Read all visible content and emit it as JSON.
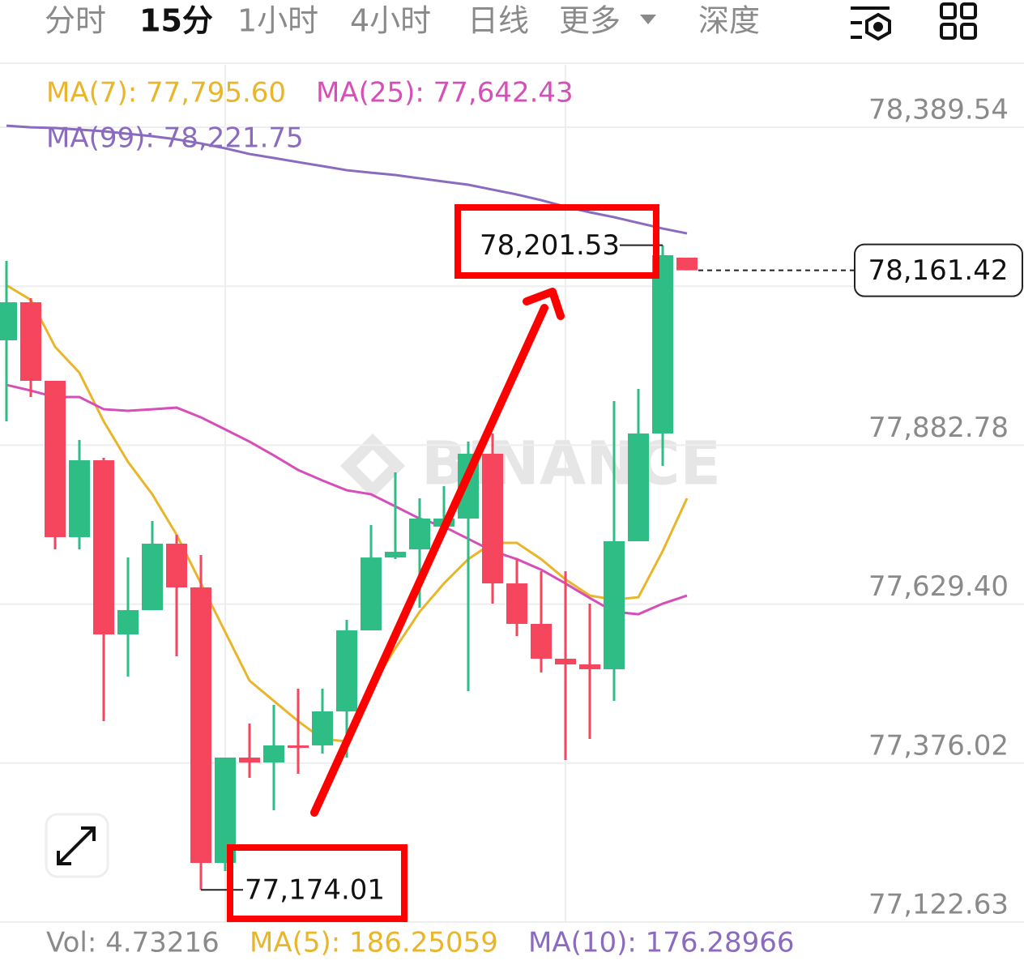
{
  "tabs": [
    "分时",
    "15分",
    "1小时",
    "4小时",
    "日线",
    "更多",
    "深度"
  ],
  "chart_data": {
    "type": "candlestick",
    "watermark": "BINANCE",
    "up_color": "#2ebd85",
    "down_color": "#f6465d",
    "ylim": [
      77122.63,
      78490
    ],
    "yticks": [
      {
        "value": 78389.54,
        "label": "78,389.54"
      },
      {
        "value": 78136.16,
        "label": null
      },
      {
        "value": 77882.78,
        "label": "77,882.78"
      },
      {
        "value": 77629.4,
        "label": "77,629.40"
      },
      {
        "value": 77376.02,
        "label": "77,376.02"
      },
      {
        "value": 77122.63,
        "label": "77,122.63"
      }
    ],
    "grid": true,
    "open": [
      78049.9,
      78110.5,
      77985.3,
      77736.1,
      77858.7,
      77581.1,
      77619.8,
      77725.7,
      77656.0,
      77216.9,
      77384.8,
      77377.0,
      77404.2,
      77404.2,
      77458.4,
      77587.5,
      77703.7,
      77716.7,
      77752.9,
      77765.8,
      77869.1,
      77662.4,
      77597.9,
      77542.4,
      77533.3,
      77525.6,
      77729.6,
      77901.3,
      78181.6
    ],
    "high": [
      78176.4,
      78117.0,
      77985.3,
      77891.0,
      77862.6,
      77703.7,
      77761.9,
      77740.0,
      77707.6,
      77384.8,
      77439.0,
      77468.7,
      77494.6,
      77494.6,
      77604.3,
      77755.4,
      77839.4,
      77798.0,
      77817.4,
      77888.4,
      77901.3,
      77701.2,
      77681.8,
      77681.8,
      77630.2,
      77953.0,
      77972.4,
      78201.53,
      78181.6
    ],
    "low": [
      77920.7,
      77959.5,
      77716.7,
      77716.7,
      77442.9,
      77514.0,
      77619.8,
      77546.2,
      77174.01,
      77204.0,
      77352.5,
      77300.8,
      77358.9,
      77391.2,
      77384.8,
      77587.5,
      77701.2,
      77623.7,
      77740.0,
      77490.7,
      77630.2,
      77578.5,
      77520.4,
      77380.9,
      77414.5,
      77475.2,
      77729.6,
      77849.7,
      78161.42
    ],
    "close": [
      78110.5,
      77985.3,
      77736.1,
      77858.7,
      77581.1,
      77619.8,
      77725.7,
      77656.0,
      77216.9,
      77384.8,
      77377.0,
      77404.2,
      77401.6,
      77458.4,
      77587.5,
      77703.7,
      77712.8,
      77765.8,
      77765.8,
      77869.1,
      77662.4,
      77597.9,
      77542.4,
      77533.3,
      77525.6,
      77729.6,
      77901.3,
      78185.5,
      78161.42
    ],
    "series": [
      {
        "name": "MA(7): 77,795.60",
        "color": "#e9b52b",
        "values": [
          78137.6,
          78114.4,
          78039.5,
          77998.2,
          77920.7,
          77856.1,
          77804.4,
          77739.9,
          77662.4,
          77584.9,
          77507.4,
          77475.1,
          77442.9,
          77414.4,
          77410.6,
          77497.1,
          77559.1,
          77617.2,
          77662.4,
          77701.1,
          77727.0,
          77727.0,
          77701.1,
          77668.8,
          77643.0,
          77636.6,
          77640.4,
          77714.0,
          77798.0
        ]
      },
      {
        "name": "MA(25): 77,642.43",
        "color": "#d64fb8",
        "values": [
          77978.8,
          77969.7,
          77959.4,
          77959.4,
          77940.0,
          77937.5,
          77940.0,
          77942.6,
          77927.1,
          77907.8,
          77888.4,
          77866.4,
          77843.2,
          77826.4,
          77810.9,
          77804.4,
          77785.1,
          77765.7,
          77752.8,
          77733.4,
          77714.0,
          77701.1,
          77684.3,
          77662.4,
          77639.1,
          77617.2,
          77613.3,
          77630.1,
          77643.0
        ]
      },
      {
        "name": "MA(99): 78,221.75",
        "color": "#8b6bbf",
        "values": [
          78392.0,
          78389.4,
          78388.2,
          78385.6,
          78383.0,
          78379.1,
          78375.2,
          78370.1,
          78363.6,
          78355.9,
          78346.8,
          78340.4,
          78333.9,
          78327.5,
          78321.0,
          78317.1,
          78313.3,
          78308.1,
          78302.9,
          78297.8,
          78290.0,
          78282.3,
          78273.2,
          78262.9,
          78253.9,
          78246.1,
          78237.1,
          78228.0,
          78220.3
        ]
      }
    ],
    "annotations": [
      {
        "value": 78201.53,
        "label": "78,201.53"
      },
      {
        "value": 77174.01,
        "label": "77,174.01"
      }
    ],
    "current_price": {
      "value": 78161.42,
      "label": "78,161.42"
    },
    "volume_legend": [
      {
        "text": "Vol: 4.73216",
        "color": "#8a8a8a"
      },
      {
        "text": "MA(5): 186.25059",
        "color": "#e9b52b"
      },
      {
        "text": "MA(10): 176.28966",
        "color": "#8b6bbf"
      }
    ]
  }
}
